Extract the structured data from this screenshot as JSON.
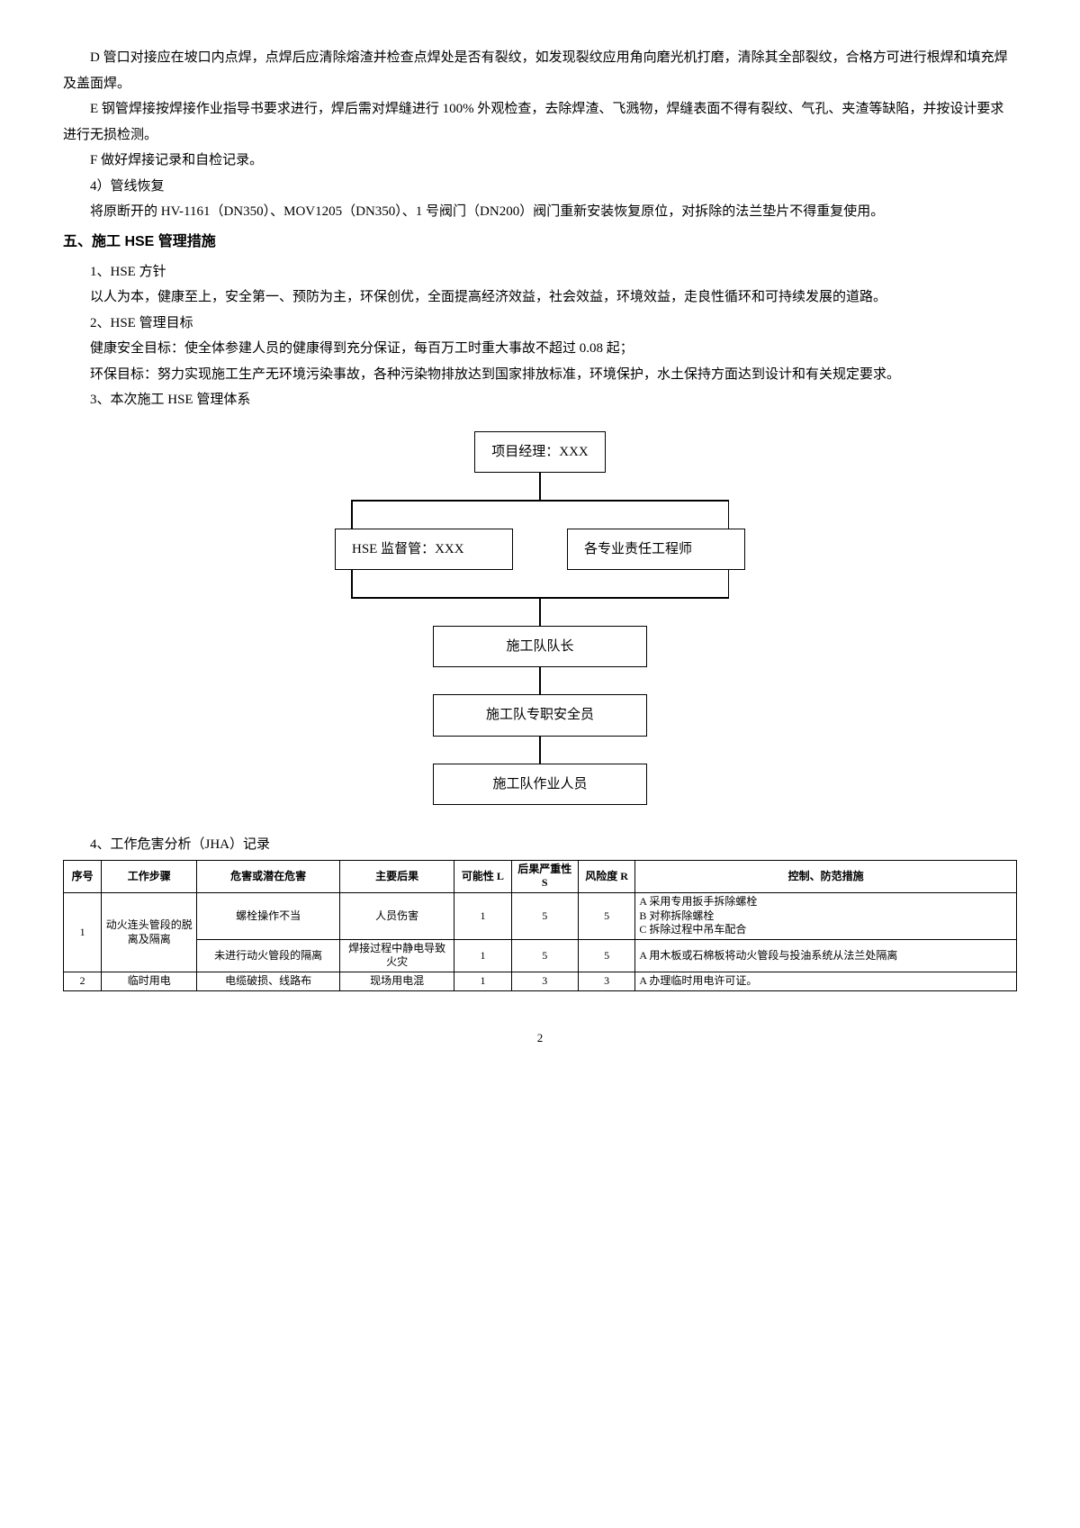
{
  "paragraphs": {
    "p1": "D 管口对接应在坡口内点焊，点焊后应清除熔渣并检查点焊处是否有裂纹，如发现裂纹应用角向磨光机打磨，清除其全部裂纹，合格方可进行根焊和填充焊及盖面焊。",
    "p2": "E 钢管焊接按焊接作业指导书要求进行，焊后需对焊缝进行 100% 外观检查，去除焊渣、飞溅物，焊缝表面不得有裂纹、气孔、夹渣等缺陷，并按设计要求进行无损检测。",
    "p3": "F 做好焊接记录和自检记录。",
    "p4": "4）管线恢复",
    "p5": "将原断开的 HV-1161（DN350）、MOV1205（DN350）、1 号阀门（DN200）阀门重新安装恢复原位，对拆除的法兰垫片不得重复使用。",
    "h5": "五、施工 HSE 管理措施",
    "s1": "1、HSE 方针",
    "s1b": "以人为本，健康至上，安全第一、预防为主，环保创优，全面提高经济效益，社会效益，环境效益，走良性循环和可持续发展的道路。",
    "s2": "2、HSE 管理目标",
    "s2b": "健康安全目标：使全体参建人员的健康得到充分保证，每百万工时重大事故不超过 0.08 起；",
    "s2c": "环保目标：努力实现施工生产无环境污染事故，各种污染物排放达到国家排放标准，环境保护，水土保持方面达到设计和有关规定要求。",
    "s3": "3、本次施工 HSE 管理体系"
  },
  "flowchart": {
    "n1": "项目经理：XXX",
    "n2a": "HSE 监督管：XXX",
    "n2b": "各专业责任工程师",
    "n3": "施工队队长",
    "n4": "施工队专职安全员",
    "n5": "施工队作业人员"
  },
  "table": {
    "title": "4、工作危害分析（JHA）记录",
    "headers": [
      "序号",
      "工作步骤",
      "危害或潜在危害",
      "主要后果",
      "可能性 L",
      "后果严重性 S",
      "风险度 R",
      "控制、防范措施"
    ],
    "rows": [
      {
        "seq": "1",
        "step": "动火连头管段的脱离及隔离",
        "sub": [
          {
            "hazard": "螺栓操作不当",
            "result": "人员伤害",
            "l": "1",
            "s": "5",
            "r": "5",
            "ctrl": "A 采用专用扳手拆除螺栓\nB 对称拆除螺栓\nC 拆除过程中吊车配合"
          },
          {
            "hazard": "未进行动火管段的隔离",
            "result": "焊接过程中静电导致火灾",
            "l": "1",
            "s": "5",
            "r": "5",
            "ctrl": "A 用木板或石棉板将动火管段与投油系统从法兰处隔离"
          }
        ]
      },
      {
        "seq": "2",
        "step": "临时用电",
        "sub": [
          {
            "hazard": "电缆破损、线路布",
            "result": "现场用电混",
            "l": "1",
            "s": "3",
            "r": "3",
            "ctrl": "A 办理临时用电许可证。"
          }
        ]
      }
    ]
  },
  "footer": "2"
}
